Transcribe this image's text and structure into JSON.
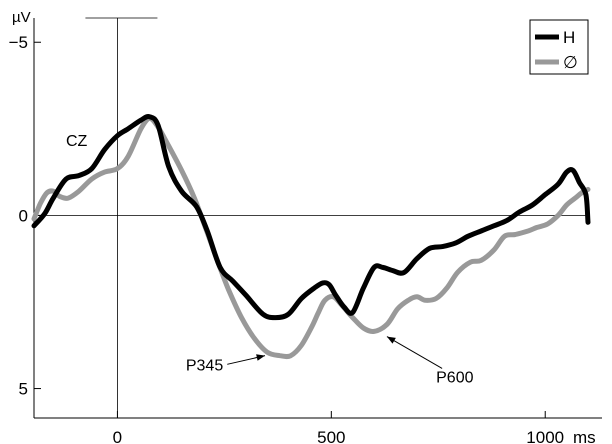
{
  "chart_data": {
    "type": "line",
    "title": "",
    "xlabel": "ms",
    "ylabel": "µV",
    "channel_label": "CZ",
    "y_inverted": true,
    "xlim": [
      -195,
      1100
    ],
    "ylim": [
      -5.7,
      5.85
    ],
    "x_ticks": [
      {
        "value": 0,
        "label": "0"
      },
      {
        "value": 500,
        "label": "500"
      },
      {
        "value": 1000,
        "label": "1000"
      }
    ],
    "y_ticks": [
      {
        "value": -5,
        "label": "−5"
      },
      {
        "value": 0,
        "label": "0"
      },
      {
        "value": 5,
        "label": "5"
      }
    ],
    "legend_position": "top-right",
    "series": [
      {
        "name": "H",
        "color": "#000000",
        "points": [
          [
            -195,
            0.3
          ],
          [
            -170,
            -0.05
          ],
          [
            -150,
            -0.5
          ],
          [
            -120,
            -1.05
          ],
          [
            -90,
            -1.15
          ],
          [
            -60,
            -1.35
          ],
          [
            -30,
            -1.9
          ],
          [
            0,
            -2.3
          ],
          [
            25,
            -2.5
          ],
          [
            55,
            -2.75
          ],
          [
            75,
            -2.85
          ],
          [
            95,
            -2.6
          ],
          [
            120,
            -1.4
          ],
          [
            150,
            -0.7
          ],
          [
            185,
            -0.25
          ],
          [
            210,
            0.45
          ],
          [
            240,
            1.5
          ],
          [
            270,
            1.9
          ],
          [
            300,
            2.3
          ],
          [
            340,
            2.85
          ],
          [
            370,
            2.95
          ],
          [
            400,
            2.85
          ],
          [
            430,
            2.4
          ],
          [
            460,
            2.1
          ],
          [
            480,
            1.95
          ],
          [
            495,
            2.0
          ],
          [
            510,
            2.3
          ],
          [
            530,
            2.65
          ],
          [
            550,
            2.8
          ],
          [
            575,
            2.1
          ],
          [
            600,
            1.5
          ],
          [
            620,
            1.5
          ],
          [
            645,
            1.6
          ],
          [
            670,
            1.65
          ],
          [
            700,
            1.25
          ],
          [
            730,
            0.95
          ],
          [
            760,
            0.9
          ],
          [
            790,
            0.8
          ],
          [
            820,
            0.6
          ],
          [
            850,
            0.45
          ],
          [
            880,
            0.3
          ],
          [
            910,
            0.15
          ],
          [
            940,
            -0.1
          ],
          [
            970,
            -0.3
          ],
          [
            1000,
            -0.6
          ],
          [
            1030,
            -0.9
          ],
          [
            1050,
            -1.25
          ],
          [
            1065,
            -1.3
          ],
          [
            1080,
            -0.95
          ],
          [
            1095,
            -0.6
          ],
          [
            1100,
            0.2
          ]
        ]
      },
      {
        "name": "∅",
        "color": "#999999",
        "points": [
          [
            -195,
            0.1
          ],
          [
            -180,
            -0.35
          ],
          [
            -165,
            -0.65
          ],
          [
            -150,
            -0.7
          ],
          [
            -135,
            -0.55
          ],
          [
            -115,
            -0.5
          ],
          [
            -90,
            -0.7
          ],
          [
            -60,
            -1.05
          ],
          [
            -30,
            -1.25
          ],
          [
            0,
            -1.35
          ],
          [
            25,
            -1.7
          ],
          [
            55,
            -2.5
          ],
          [
            75,
            -2.8
          ],
          [
            95,
            -2.55
          ],
          [
            120,
            -2.0
          ],
          [
            150,
            -1.3
          ],
          [
            180,
            -0.5
          ],
          [
            210,
            0.5
          ],
          [
            235,
            1.35
          ],
          [
            260,
            2.15
          ],
          [
            290,
            2.95
          ],
          [
            320,
            3.55
          ],
          [
            350,
            3.95
          ],
          [
            380,
            4.05
          ],
          [
            405,
            4.05
          ],
          [
            430,
            3.75
          ],
          [
            455,
            3.2
          ],
          [
            470,
            2.8
          ],
          [
            485,
            2.45
          ],
          [
            505,
            2.35
          ],
          [
            525,
            2.6
          ],
          [
            550,
            2.95
          ],
          [
            575,
            3.25
          ],
          [
            600,
            3.35
          ],
          [
            630,
            3.15
          ],
          [
            655,
            2.7
          ],
          [
            680,
            2.45
          ],
          [
            700,
            2.35
          ],
          [
            720,
            2.45
          ],
          [
            745,
            2.4
          ],
          [
            770,
            2.1
          ],
          [
            795,
            1.65
          ],
          [
            825,
            1.35
          ],
          [
            850,
            1.3
          ],
          [
            880,
            1.0
          ],
          [
            905,
            0.6
          ],
          [
            930,
            0.55
          ],
          [
            960,
            0.45
          ],
          [
            980,
            0.35
          ],
          [
            1005,
            0.25
          ],
          [
            1030,
            0.0
          ],
          [
            1050,
            -0.3
          ],
          [
            1070,
            -0.5
          ],
          [
            1085,
            -0.65
          ],
          [
            1100,
            -0.75
          ]
        ]
      }
    ],
    "annotations": [
      {
        "text": "P345",
        "label_anchor": [
          160,
          4.3
        ],
        "arrow_to": [
          345,
          4.05
        ]
      },
      {
        "text": "P600",
        "label_anchor": [
          745,
          4.65
        ],
        "arrow_to": [
          630,
          3.5
        ]
      }
    ]
  }
}
